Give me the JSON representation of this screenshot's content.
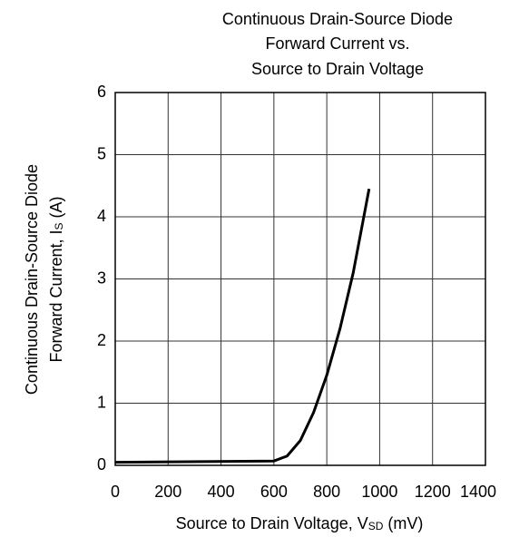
{
  "chart_data": {
    "type": "line",
    "title": [
      "Continuous Drain-Source Diode",
      "Forward Current vs.",
      "Source to Drain Voltage"
    ],
    "x_label": [
      "Source to Drain Voltage, V",
      "SD",
      " (mV)"
    ],
    "y_label": [
      "Continuous Drain-Source Diode",
      "Forward Current, I",
      "S",
      " (A)"
    ],
    "x": [
      0,
      600,
      650,
      700,
      750,
      800,
      850,
      900,
      960
    ],
    "series": [
      {
        "color": "#000000",
        "values": [
          0.05,
          0.07,
          0.15,
          0.4,
          0.85,
          1.45,
          2.2,
          3.1,
          4.45
        ]
      }
    ],
    "xlim": [
      0,
      1400
    ],
    "xticks": [
      0,
      200,
      400,
      600,
      800,
      1000,
      1200,
      1400
    ],
    "ylim": [
      0,
      6
    ],
    "yticks": [
      0,
      1,
      2,
      3,
      4,
      5,
      6
    ],
    "grid": true
  }
}
